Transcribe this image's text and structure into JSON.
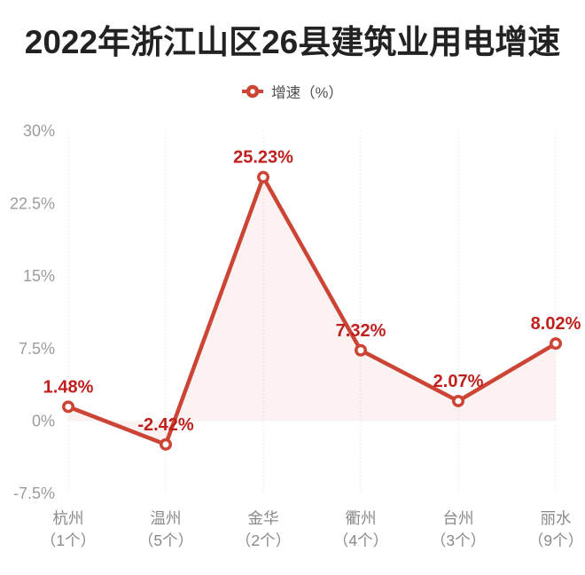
{
  "chart_data": {
    "type": "line",
    "title": "2022年浙江山区26县建筑业用电增速",
    "legend": {
      "label": "增速（%）",
      "position": "top-center"
    },
    "categories": [
      "杭州",
      "温州",
      "金华",
      "衢州",
      "台州",
      "丽水"
    ],
    "category_sublabels": [
      "（1个）",
      "（5个）",
      "（2个）",
      "（4个）",
      "（3个）",
      "（9个）"
    ],
    "values": [
      1.48,
      -2.42,
      25.23,
      7.32,
      2.07,
      8.02
    ],
    "value_labels": [
      "1.48%",
      "-2.42%",
      "25.23%",
      "7.32%",
      "2.07%",
      "8.02%"
    ],
    "y_ticks": [
      {
        "value": 30,
        "label": "30%"
      },
      {
        "value": 22.5,
        "label": "22.5%"
      },
      {
        "value": 15,
        "label": "15%"
      },
      {
        "value": 7.5,
        "label": "7.5%"
      },
      {
        "value": 0,
        "label": "0%"
      },
      {
        "value": -7.5,
        "label": "-7.5%"
      }
    ],
    "ylim": [
      -7.5,
      30
    ],
    "xlabel": "",
    "ylabel": "",
    "grid": "vertical-dotted-only",
    "area_fill": true,
    "colors": {
      "line": "#cb4434",
      "marker_fill": "#ffffff",
      "data_label": "#bf201d",
      "area": "rgba(203,68,52,0.07)",
      "gridline": "#e2e2e2",
      "y_axis_label": "#9c9c9c",
      "x_axis_label": "#8a8a8a",
      "title": "#222222",
      "legend_text": "#4f4f4f",
      "background": "#ffffff"
    }
  }
}
